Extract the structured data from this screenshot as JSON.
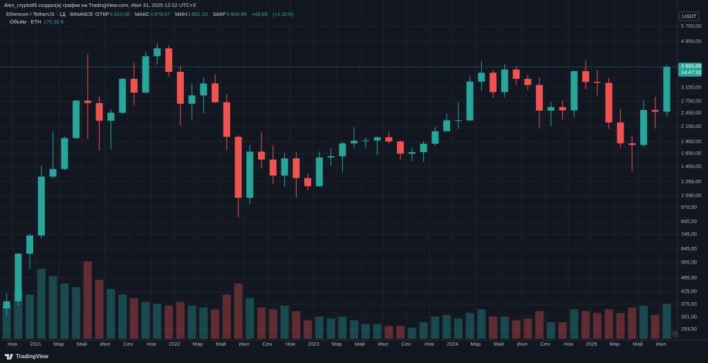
{
  "header": {
    "author_line": "Alex_crypto85 создал(а) график на TradingView.com, Июл 31, 2025 12:12 UTC+3",
    "symbol": "Ethereum / TetherUS · 1Д · BINANCE",
    "open_label": "ОТКР",
    "open": {
      "value": 3810.0,
      "label": "3 810,00"
    },
    "high_label": "МАКС",
    "high": {
      "value": 3878.67,
      "label": "3 878,67"
    },
    "low_label": "МИН",
    "low": {
      "value": 3801.53,
      "label": "3 801,53"
    },
    "close_label": "ЗАКР",
    "close": {
      "value": 3859.89,
      "label": "3 859,89"
    },
    "change": {
      "value": 49.89,
      "label": "+49,89"
    },
    "change_pct": {
      "value": 1.31,
      "label": "(+1,31%)"
    },
    "volume_label": "Объём · ETH",
    "volume": {
      "value": 170.36,
      "label": "170,36 K"
    }
  },
  "footer": {
    "brand": "TradingView"
  },
  "chart_data": {
    "type": "candlestick",
    "log_scale": true,
    "grid": true,
    "currency": "USDT",
    "up_color": "#26a69a",
    "down_color": "#ef5350",
    "categories": [
      null,
      "Ноя",
      null,
      "2021",
      null,
      "Мар",
      null,
      "Май",
      null,
      "Июл",
      null,
      "Сен",
      null,
      "Ноя",
      null,
      "2022",
      null,
      "Мар",
      null,
      "Май",
      null,
      "Июл",
      null,
      "Сен",
      null,
      "Ноя",
      null,
      "2023",
      null,
      "Мар",
      null,
      "Май",
      null,
      "Июл",
      null,
      "Сен",
      null,
      "Ноя",
      null,
      "2024",
      null,
      "Мар",
      null,
      "Май",
      null,
      "Июл",
      null,
      "Сен",
      null,
      "Ноя",
      null,
      "2025",
      null,
      "Мар",
      null,
      "Май",
      null,
      "Июл"
    ],
    "open": [
      360,
      386,
      616,
      737,
      1314,
      1416,
      1918,
      2773,
      2707,
      2275,
      2462,
      3433,
      3001,
      4288,
      4631,
      3676,
      2688,
      2919,
      3282,
      2728,
      1942,
      1067,
      1679,
      1553,
      1328,
      1572,
      1295,
      1196,
      1585,
      1605,
      1821,
      1870,
      1874,
      1934,
      1856,
      1646,
      1671,
      1815,
      2052,
      2282,
      2283,
      3340,
      3645,
      3014,
      3763,
      3433,
      3232,
      2513,
      2603,
      2518,
      3703,
      3332,
      3300,
      2237,
      1822,
      1793,
      2528,
      2486
    ],
    "high": [
      420,
      620,
      750,
      1470,
      2040,
      1950,
      2780,
      4370,
      2890,
      2550,
      3470,
      4030,
      4460,
      4870,
      4780,
      3900,
      3280,
      3480,
      3580,
      2960,
      1970,
      1790,
      2030,
      1790,
      1660,
      1680,
      1350,
      1680,
      1740,
      1850,
      2140,
      1930,
      1940,
      2030,
      1880,
      1750,
      1865,
      2140,
      2450,
      2720,
      3520,
      4090,
      3730,
      3980,
      3890,
      3560,
      3480,
      2730,
      2770,
      3720,
      4110,
      3740,
      3450,
      2550,
      1960,
      2790,
      2880,
      3940
    ],
    "low": [
      335,
      370,
      530,
      715,
      1290,
      1400,
      1900,
      1900,
      1700,
      1720,
      2430,
      2650,
      2970,
      3950,
      3500,
      2160,
      2300,
      2450,
      2710,
      1700,
      880,
      1000,
      1420,
      1220,
      1190,
      1070,
      1150,
      1190,
      1460,
      1370,
      1750,
      1740,
      1620,
      1820,
      1550,
      1530,
      1520,
      1780,
      2050,
      2100,
      2260,
      3050,
      2850,
      2860,
      3240,
      3080,
      2110,
      2150,
      2310,
      2360,
      3100,
      2920,
      2100,
      1750,
      1385,
      1750,
      2110,
      2370
    ],
    "close": [
      386,
      616,
      737,
      1314,
      1416,
      1918,
      2773,
      2707,
      2275,
      2462,
      3433,
      3001,
      4288,
      4631,
      3676,
      2688,
      2919,
      3282,
      2728,
      1942,
      1067,
      1679,
      1553,
      1328,
      1572,
      1295,
      1196,
      1585,
      1605,
      1821,
      1870,
      1874,
      1934,
      1856,
      1646,
      1671,
      1815,
      2052,
      2282,
      2283,
      3340,
      3645,
      3014,
      3763,
      3433,
      3232,
      2513,
      2603,
      2518,
      3703,
      3332,
      3300,
      2237,
      1822,
      1793,
      2528,
      2486,
      3859.89
    ],
    "volume": [
      18,
      26,
      24,
      38,
      34,
      30,
      28,
      42,
      32,
      27,
      24,
      22,
      20,
      19,
      18,
      20,
      18,
      17,
      16,
      24,
      30,
      22,
      17,
      16,
      18,
      15,
      10,
      12,
      11,
      12,
      10,
      8,
      8,
      7,
      7,
      6,
      9,
      12,
      13,
      11,
      14,
      16,
      12,
      12,
      10,
      11,
      15,
      9,
      9,
      16,
      15,
      14,
      16,
      14,
      17,
      18,
      13,
      19
    ],
    "volume_ylim": [
      0,
      45
    ],
    "ylim": [
      267,
      7450
    ],
    "yticks": [
      {
        "value": 5750,
        "label": "5 750,00"
      },
      {
        "value": 4950,
        "label": "4 950,00"
      },
      {
        "value": 3150,
        "label": "3 150,00"
      },
      {
        "value": 2750,
        "label": "2 750,00"
      },
      {
        "value": 2450,
        "label": "2 450,00"
      },
      {
        "value": 2150,
        "label": "2 150,00"
      },
      {
        "value": 1850,
        "label": "1 850,00"
      },
      {
        "value": 1650,
        "label": "1 650,00"
      },
      {
        "value": 1450,
        "label": "1 450,00"
      },
      {
        "value": 1250,
        "label": "1 250,00"
      },
      {
        "value": 1090,
        "label": "1 090,00"
      },
      {
        "value": 970,
        "label": "970,00"
      },
      {
        "value": 845,
        "label": "845,00"
      },
      {
        "value": 745,
        "label": "745,00"
      },
      {
        "value": 645,
        "label": "645,00"
      },
      {
        "value": 565,
        "label": "565,00"
      },
      {
        "value": 485,
        "label": "485,00"
      },
      {
        "value": 425,
        "label": "425,00"
      },
      {
        "value": 375,
        "label": "375,00"
      },
      {
        "value": 331,
        "label": "331,00"
      },
      {
        "value": 293.5,
        "label": "293,50"
      }
    ],
    "last_price": {
      "value": 3859.89,
      "label": "3 859,89"
    },
    "countdown": "14:47:32"
  }
}
